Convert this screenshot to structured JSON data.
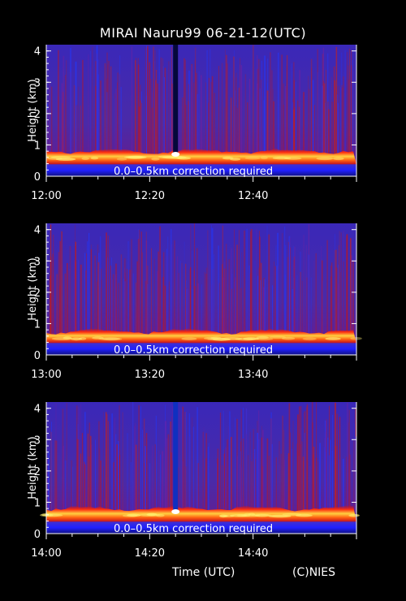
{
  "title": "MIRAI Nauru99 06-21-12(UTC)",
  "x_axis_title": "Time (UTC)",
  "credit": "(C)NIES",
  "colors": {
    "background": "#000000",
    "axes": "#ffffff",
    "text": "#ffffff",
    "field_low": "#3a2ac8",
    "field_mid": "#6a1a9a",
    "field_high": "#d01010",
    "layer_core": "#ffe040",
    "near_surface": "#2020ff"
  },
  "chart_data": [
    {
      "type": "heatmap",
      "ylabel": "Height (km)",
      "ylim": [
        0,
        4.2
      ],
      "yticks": [
        "0",
        "1",
        "2",
        "3",
        "4"
      ],
      "xticks": [
        "12:00",
        "12:20",
        "12:40"
      ],
      "x_start": "12:00",
      "x_end": "13:00",
      "annotation": "0.0–0.5km correction required",
      "layer_top_km": 0.7,
      "data_gap": "12:25"
    },
    {
      "type": "heatmap",
      "ylabel": "Height (km)",
      "ylim": [
        0,
        4.2
      ],
      "yticks": [
        "0",
        "1",
        "2",
        "3",
        "4"
      ],
      "xticks": [
        "13:00",
        "13:20",
        "13:40"
      ],
      "x_start": "13:00",
      "x_end": "14:00",
      "annotation": "0.0–0.5km correction required",
      "layer_top_km": 0.65,
      "data_gap": ""
    },
    {
      "type": "heatmap",
      "ylabel": "Height (km)",
      "ylim": [
        0,
        4.2
      ],
      "yticks": [
        "0",
        "1",
        "2",
        "3",
        "4"
      ],
      "xticks": [
        "14:00",
        "14:20",
        "14:40"
      ],
      "x_start": "14:00",
      "x_end": "15:00",
      "annotation": "0.0–0.5km correction required",
      "layer_top_km": 0.7,
      "data_gap": "14:25"
    }
  ]
}
